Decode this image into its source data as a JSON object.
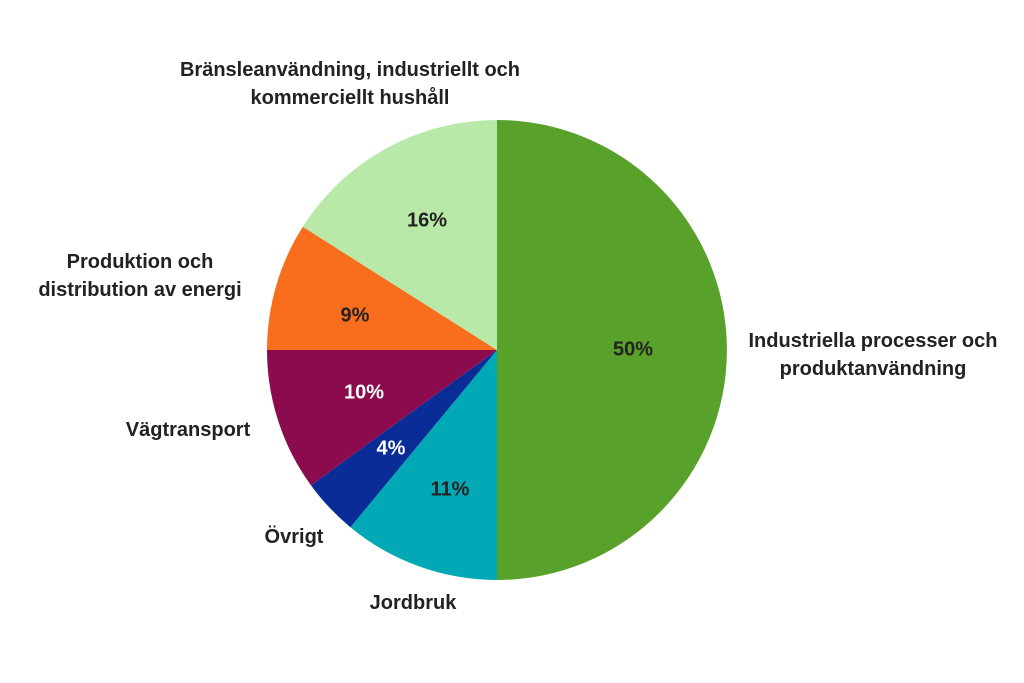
{
  "chart_data": {
    "type": "pie",
    "categories": [
      "Industriella processer och produktanvändning",
      "Jordbruk",
      "Övrigt",
      "Vägtransport",
      "Produktion och distribution av energi",
      "Bränsleanvändning, industriellt och kommerciellt hushåll"
    ],
    "values": [
      50,
      11,
      4,
      10,
      9,
      16
    ],
    "value_labels": [
      "50%",
      "11%",
      "4%",
      "10%",
      "9%",
      "16%"
    ],
    "colors": [
      "#58a12b",
      "#00a9b5",
      "#0a2c97",
      "#8c0a4e",
      "#f96e1c",
      "#b8e9a8"
    ]
  }
}
